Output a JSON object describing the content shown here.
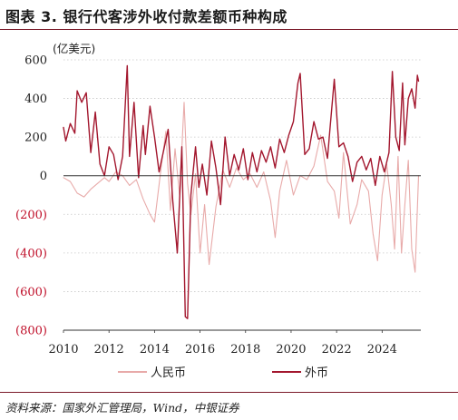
{
  "figure": {
    "title": "图表 3. 银行代客涉外收付款差额币种构成",
    "source": "资料来源：国家外汇管理局，Wind，中银证券"
  },
  "colors": {
    "rmb": "#e8aaa9",
    "foreign": "#a3172e",
    "negative_tick": "#c0102a",
    "grid": "#c8c8c8",
    "rule": "#7a1a2a"
  },
  "chart_data": {
    "type": "line",
    "title": "",
    "unit_label": "(亿美元)",
    "xlabel": "",
    "ylabel": "",
    "xlim": [
      2010.0,
      2025.7
    ],
    "ylim": [
      -800,
      600
    ],
    "y_ticks": [
      {
        "value": 600,
        "label": "600"
      },
      {
        "value": 400,
        "label": "400"
      },
      {
        "value": 200,
        "label": "200"
      },
      {
        "value": 0,
        "label": "0"
      },
      {
        "value": -200,
        "label": "(200)"
      },
      {
        "value": -400,
        "label": "(400)"
      },
      {
        "value": -600,
        "label": "(600)"
      },
      {
        "value": -800,
        "label": "(800)"
      }
    ],
    "x_ticks": [
      {
        "value": 2010,
        "label": "2010"
      },
      {
        "value": 2012,
        "label": "2012"
      },
      {
        "value": 2014,
        "label": "2014"
      },
      {
        "value": 2016,
        "label": "2016"
      },
      {
        "value": 2018,
        "label": "2018"
      },
      {
        "value": 2020,
        "label": "2020"
      },
      {
        "value": 2022,
        "label": "2022"
      },
      {
        "value": 2024,
        "label": "2024"
      }
    ],
    "grid": "horizontal-dotted",
    "legend_position": "bottom",
    "series": [
      {
        "name": "人民币",
        "color": "#e8aaa9",
        "points": [
          [
            2010.0,
            -10
          ],
          [
            2010.3,
            -30
          ],
          [
            2010.6,
            -90
          ],
          [
            2010.9,
            -110
          ],
          [
            2011.2,
            -70
          ],
          [
            2011.5,
            -40
          ],
          [
            2011.8,
            -10
          ],
          [
            2012.0,
            -30
          ],
          [
            2012.3,
            20
          ],
          [
            2012.6,
            0
          ],
          [
            2012.9,
            -50
          ],
          [
            2013.2,
            -20
          ],
          [
            2013.5,
            -120
          ],
          [
            2013.8,
            -200
          ],
          [
            2014.0,
            -240
          ],
          [
            2014.3,
            50
          ],
          [
            2014.5,
            230
          ],
          [
            2014.7,
            -180
          ],
          [
            2014.9,
            140
          ],
          [
            2015.1,
            -100
          ],
          [
            2015.3,
            380
          ],
          [
            2015.45,
            -40
          ],
          [
            2015.6,
            -200
          ],
          [
            2015.8,
            10
          ],
          [
            2016.0,
            -400
          ],
          [
            2016.2,
            -150
          ],
          [
            2016.4,
            -460
          ],
          [
            2016.7,
            -160
          ],
          [
            2017.0,
            30
          ],
          [
            2017.3,
            -60
          ],
          [
            2017.6,
            40
          ],
          [
            2017.9,
            -20
          ],
          [
            2018.2,
            10
          ],
          [
            2018.5,
            -60
          ],
          [
            2018.8,
            20
          ],
          [
            2019.1,
            -130
          ],
          [
            2019.3,
            -320
          ],
          [
            2019.5,
            -80
          ],
          [
            2019.8,
            80
          ],
          [
            2020.1,
            -100
          ],
          [
            2020.4,
            0
          ],
          [
            2020.7,
            -20
          ],
          [
            2021.0,
            50
          ],
          [
            2021.3,
            210
          ],
          [
            2021.6,
            -30
          ],
          [
            2021.9,
            -80
          ],
          [
            2022.1,
            -220
          ],
          [
            2022.3,
            120
          ],
          [
            2022.6,
            -250
          ],
          [
            2022.9,
            -150
          ],
          [
            2023.1,
            -20
          ],
          [
            2023.4,
            -80
          ],
          [
            2023.6,
            -300
          ],
          [
            2023.8,
            -440
          ],
          [
            2024.0,
            -100
          ],
          [
            2024.2,
            60
          ],
          [
            2024.4,
            -150
          ],
          [
            2024.55,
            -380
          ],
          [
            2024.7,
            100
          ],
          [
            2024.85,
            -400
          ],
          [
            2025.0,
            -150
          ],
          [
            2025.15,
            80
          ],
          [
            2025.3,
            -380
          ],
          [
            2025.45,
            -500
          ],
          [
            2025.6,
            0
          ]
        ]
      },
      {
        "name": "外币",
        "color": "#a3172e",
        "points": [
          [
            2010.0,
            250
          ],
          [
            2010.1,
            180
          ],
          [
            2010.3,
            270
          ],
          [
            2010.5,
            220
          ],
          [
            2010.6,
            440
          ],
          [
            2010.8,
            380
          ],
          [
            2011.0,
            430
          ],
          [
            2011.2,
            120
          ],
          [
            2011.4,
            330
          ],
          [
            2011.6,
            60
          ],
          [
            2011.8,
            0
          ],
          [
            2012.0,
            150
          ],
          [
            2012.2,
            110
          ],
          [
            2012.4,
            -20
          ],
          [
            2012.6,
            100
          ],
          [
            2012.8,
            570
          ],
          [
            2012.9,
            100
          ],
          [
            2013.1,
            380
          ],
          [
            2013.3,
            -10
          ],
          [
            2013.5,
            260
          ],
          [
            2013.6,
            110
          ],
          [
            2013.8,
            360
          ],
          [
            2014.0,
            200
          ],
          [
            2014.2,
            20
          ],
          [
            2014.4,
            130
          ],
          [
            2014.6,
            240
          ],
          [
            2014.7,
            60
          ],
          [
            2014.8,
            -130
          ],
          [
            2015.0,
            -400
          ],
          [
            2015.2,
            150
          ],
          [
            2015.35,
            -730
          ],
          [
            2015.45,
            -740
          ],
          [
            2015.6,
            -100
          ],
          [
            2015.8,
            150
          ],
          [
            2015.95,
            -60
          ],
          [
            2016.1,
            60
          ],
          [
            2016.3,
            -100
          ],
          [
            2016.5,
            180
          ],
          [
            2016.7,
            40
          ],
          [
            2016.9,
            -150
          ],
          [
            2017.1,
            200
          ],
          [
            2017.3,
            0
          ],
          [
            2017.5,
            110
          ],
          [
            2017.7,
            30
          ],
          [
            2017.9,
            140
          ],
          [
            2018.1,
            -20
          ],
          [
            2018.3,
            120
          ],
          [
            2018.5,
            20
          ],
          [
            2018.7,
            130
          ],
          [
            2018.9,
            70
          ],
          [
            2019.1,
            150
          ],
          [
            2019.3,
            40
          ],
          [
            2019.5,
            190
          ],
          [
            2019.7,
            120
          ],
          [
            2019.9,
            210
          ],
          [
            2020.1,
            280
          ],
          [
            2020.3,
            480
          ],
          [
            2020.4,
            530
          ],
          [
            2020.6,
            110
          ],
          [
            2020.8,
            140
          ],
          [
            2021.0,
            280
          ],
          [
            2021.2,
            190
          ],
          [
            2021.4,
            200
          ],
          [
            2021.6,
            90
          ],
          [
            2021.7,
            230
          ],
          [
            2021.9,
            500
          ],
          [
            2022.1,
            150
          ],
          [
            2022.3,
            170
          ],
          [
            2022.5,
            100
          ],
          [
            2022.7,
            -30
          ],
          [
            2022.9,
            70
          ],
          [
            2023.1,
            100
          ],
          [
            2023.3,
            30
          ],
          [
            2023.5,
            90
          ],
          [
            2023.7,
            -50
          ],
          [
            2023.9,
            100
          ],
          [
            2024.1,
            20
          ],
          [
            2024.3,
            120
          ],
          [
            2024.45,
            540
          ],
          [
            2024.6,
            200
          ],
          [
            2024.75,
            130
          ],
          [
            2024.9,
            480
          ],
          [
            2025.0,
            160
          ],
          [
            2025.15,
            400
          ],
          [
            2025.3,
            450
          ],
          [
            2025.45,
            350
          ],
          [
            2025.55,
            520
          ],
          [
            2025.6,
            490
          ]
        ]
      }
    ]
  }
}
